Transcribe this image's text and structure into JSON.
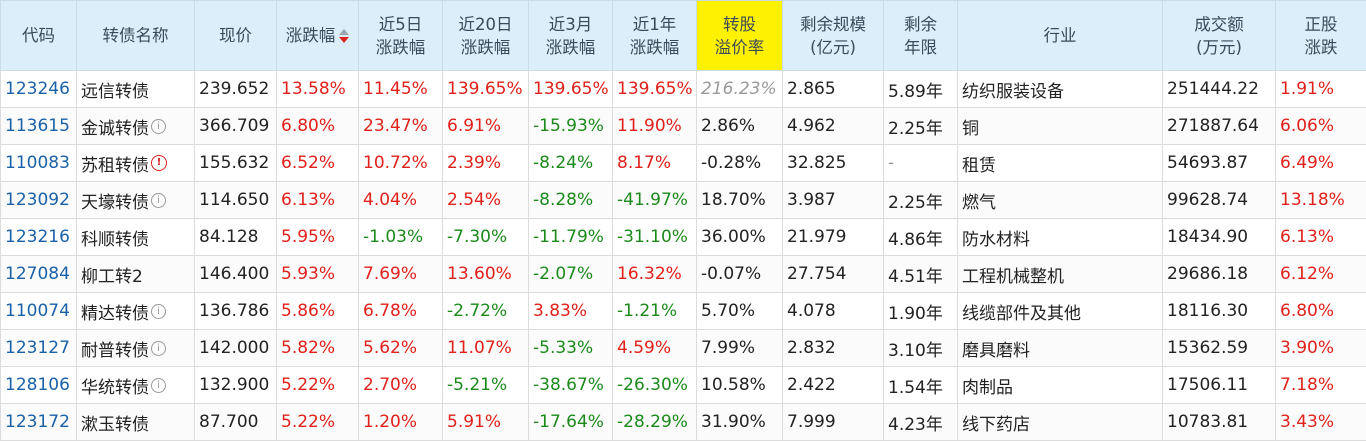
{
  "colors": {
    "header_bg": "#dceef9",
    "highlight_header_bg": "#fff200",
    "up": "#e0201b",
    "down": "#1b8a1b",
    "code": "#1a61a8"
  },
  "headers": {
    "code": [
      "代码"
    ],
    "name": [
      "转债名称"
    ],
    "price": [
      "现价"
    ],
    "change": [
      "涨跌幅"
    ],
    "chg5d": [
      "近5日",
      "涨跌幅"
    ],
    "chg20d": [
      "近20日",
      "涨跌幅"
    ],
    "chg3m": [
      "近3月",
      "涨跌幅"
    ],
    "chg1y": [
      "近1年",
      "涨跌幅"
    ],
    "premium": [
      "转股",
      "溢价率"
    ],
    "scale": [
      "剩余规模",
      "(亿元)"
    ],
    "years": [
      "剩余",
      "年限"
    ],
    "industry": [
      "行业"
    ],
    "volume": [
      "成交额",
      "(万元)"
    ],
    "stock_chg": [
      "正股",
      "涨跌"
    ]
  },
  "sort": {
    "column": "change",
    "direction": "desc"
  },
  "rows": [
    {
      "code": "123246",
      "name": "远信转债",
      "icon": "",
      "price": "239.652",
      "change": "13.58%",
      "chg5d": "11.45%",
      "chg20d": "139.65%",
      "chg3m": "139.65%",
      "chg1y": "139.65%",
      "premium": "216.23%",
      "premium_style": "muted",
      "scale": "2.865",
      "years": "5.89年",
      "industry": "纺织服装设备",
      "volume": "251444.22",
      "stock_chg": "1.91%"
    },
    {
      "code": "113615",
      "name": "金诚转债",
      "icon": "info",
      "price": "366.709",
      "change": "6.80%",
      "chg5d": "23.47%",
      "chg20d": "6.91%",
      "chg3m": "-15.93%",
      "chg1y": "11.90%",
      "premium": "2.86%",
      "premium_style": "",
      "scale": "4.962",
      "years": "2.25年",
      "industry": "铜",
      "volume": "271887.64",
      "stock_chg": "6.06%"
    },
    {
      "code": "110083",
      "name": "苏租转债",
      "icon": "warn",
      "price": "155.632",
      "change": "6.52%",
      "chg5d": "10.72%",
      "chg20d": "2.39%",
      "chg3m": "-8.24%",
      "chg1y": "8.17%",
      "premium": "-0.28%",
      "premium_style": "",
      "scale": "32.825",
      "years": "-",
      "industry": "租赁",
      "volume": "54693.87",
      "stock_chg": "6.49%"
    },
    {
      "code": "123092",
      "name": "天壕转债",
      "icon": "info",
      "price": "114.650",
      "change": "6.13%",
      "chg5d": "4.04%",
      "chg20d": "2.54%",
      "chg3m": "-8.28%",
      "chg1y": "-41.97%",
      "premium": "18.70%",
      "premium_style": "",
      "scale": "3.987",
      "years": "2.25年",
      "industry": "燃气",
      "volume": "99628.74",
      "stock_chg": "13.18%"
    },
    {
      "code": "123216",
      "name": "科顺转债",
      "icon": "",
      "price": "84.128",
      "change": "5.95%",
      "chg5d": "-1.03%",
      "chg20d": "-7.30%",
      "chg3m": "-11.79%",
      "chg1y": "-31.10%",
      "premium": "36.00%",
      "premium_style": "",
      "scale": "21.979",
      "years": "4.86年",
      "industry": "防水材料",
      "volume": "18434.90",
      "stock_chg": "6.13%"
    },
    {
      "code": "127084",
      "name": "柳工转2",
      "icon": "",
      "price": "146.400",
      "change": "5.93%",
      "chg5d": "7.69%",
      "chg20d": "13.60%",
      "chg3m": "-2.07%",
      "chg1y": "16.32%",
      "premium": "-0.07%",
      "premium_style": "",
      "scale": "27.754",
      "years": "4.51年",
      "industry": "工程机械整机",
      "volume": "29686.18",
      "stock_chg": "6.12%"
    },
    {
      "code": "110074",
      "name": "精达转债",
      "icon": "info",
      "price": "136.786",
      "change": "5.86%",
      "chg5d": "6.78%",
      "chg20d": "-2.72%",
      "chg3m": "3.83%",
      "chg1y": "-1.21%",
      "premium": "5.70%",
      "premium_style": "",
      "scale": "4.078",
      "years": "1.90年",
      "industry": "线缆部件及其他",
      "volume": "18116.30",
      "stock_chg": "6.80%"
    },
    {
      "code": "123127",
      "name": "耐普转债",
      "icon": "info",
      "price": "142.000",
      "change": "5.82%",
      "chg5d": "5.62%",
      "chg20d": "11.07%",
      "chg3m": "-5.33%",
      "chg1y": "4.59%",
      "premium": "7.99%",
      "premium_style": "",
      "scale": "2.832",
      "years": "3.10年",
      "industry": "磨具磨料",
      "volume": "15362.59",
      "stock_chg": "3.90%"
    },
    {
      "code": "128106",
      "name": "华统转债",
      "icon": "info",
      "price": "132.900",
      "change": "5.22%",
      "chg5d": "2.70%",
      "chg20d": "-5.21%",
      "chg3m": "-38.67%",
      "chg1y": "-26.30%",
      "premium": "10.58%",
      "premium_style": "",
      "scale": "2.422",
      "years": "1.54年",
      "industry": "肉制品",
      "volume": "17506.11",
      "stock_chg": "7.18%"
    },
    {
      "code": "123172",
      "name": "漱玉转债",
      "icon": "",
      "price": "87.700",
      "change": "5.22%",
      "chg5d": "1.20%",
      "chg20d": "5.91%",
      "chg3m": "-17.64%",
      "chg1y": "-28.29%",
      "premium": "31.90%",
      "premium_style": "",
      "scale": "7.999",
      "years": "4.23年",
      "industry": "线下药店",
      "volume": "10783.81",
      "stock_chg": "3.43%"
    }
  ]
}
